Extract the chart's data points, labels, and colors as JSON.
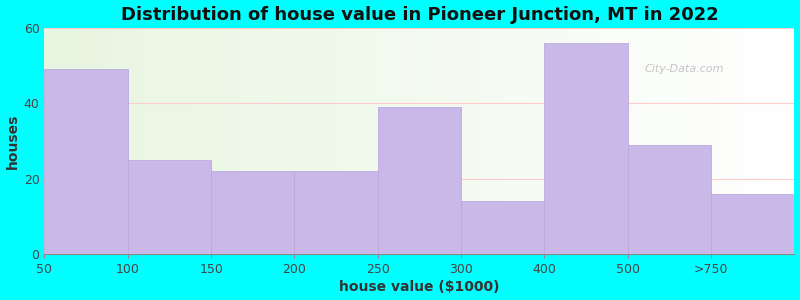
{
  "title": "Distribution of house value in Pioneer Junction, MT in 2022",
  "xlabel": "house value ($1000)",
  "ylabel": "houses",
  "categories": [
    "50",
    "100",
    "150",
    "200",
    "250",
    "300",
    "400",
    "500",
    ">750"
  ],
  "values": [
    49,
    25,
    22,
    22,
    39,
    14,
    56,
    29,
    16
  ],
  "bar_color": "#C9B8E8",
  "bar_edge_color": "#bbaadd",
  "background_color": "#00FFFF",
  "plot_bg_color_left": "#E8F5E0",
  "plot_bg_color_right": "#FFFFFF",
  "ylim": [
    0,
    60
  ],
  "yticks": [
    0,
    20,
    40,
    60
  ],
  "title_fontsize": 13,
  "axis_label_fontsize": 10,
  "tick_fontsize": 9,
  "watermark_text": "City-Data.com"
}
